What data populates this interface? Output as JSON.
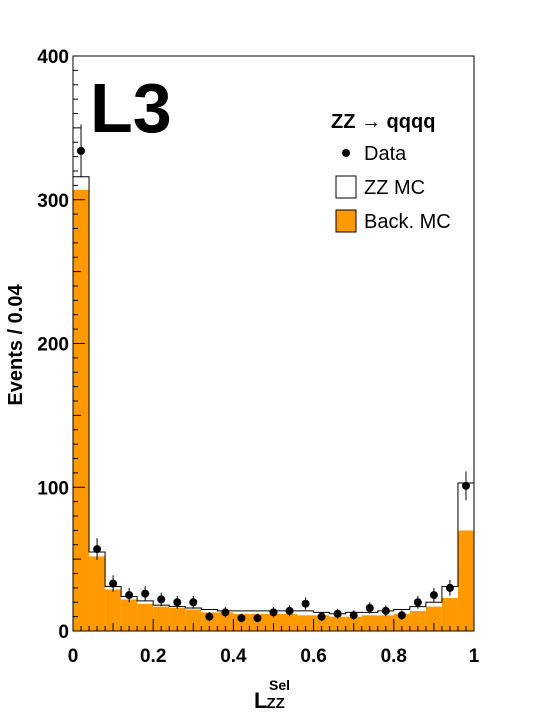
{
  "chart_data": {
    "type": "bar",
    "experiment_label": "L3",
    "process": "ZZ → qqqq",
    "ylabel": "Events / 0.04",
    "xlabel": {
      "main": "L",
      "superscript": "Sel",
      "subscript": "ZZ"
    },
    "xlim": [
      0,
      1
    ],
    "ylim": [
      0,
      400
    ],
    "x_ticks": [
      "0",
      "0.2",
      "0.4",
      "0.6",
      "0.8",
      "1"
    ],
    "y_ticks": [
      "0",
      "100",
      "200",
      "300",
      "400"
    ],
    "bin_edges": [
      0,
      0.04,
      0.08,
      0.12,
      0.16,
      0.2,
      0.24,
      0.28,
      0.32,
      0.36,
      0.4,
      0.44,
      0.48,
      0.52,
      0.56,
      0.6,
      0.64,
      0.68,
      0.72,
      0.76,
      0.8,
      0.84,
      0.88,
      0.92,
      0.96,
      1.0
    ],
    "series": [
      {
        "name": "Back. MC",
        "color": "#ff9900",
        "values": [
          307,
          52,
          29,
          22,
          19,
          17,
          16,
          15,
          13,
          13,
          12,
          12,
          12,
          12,
          11,
          11,
          10,
          10,
          11,
          11,
          12,
          14,
          17,
          23,
          70
        ]
      },
      {
        "name": "ZZ MC",
        "color": "#ffffff",
        "values": [
          316,
          55,
          31,
          24,
          21,
          18,
          17,
          16,
          15,
          14,
          14,
          14,
          14,
          14,
          14,
          13,
          12,
          13,
          13,
          14,
          15,
          17,
          20,
          31,
          103
        ]
      },
      {
        "name": "Data",
        "color": "#000000",
        "x": [
          0.02,
          0.06,
          0.1,
          0.14,
          0.18,
          0.22,
          0.26,
          0.3,
          0.34,
          0.38,
          0.42,
          0.46,
          0.5,
          0.54,
          0.58,
          0.62,
          0.66,
          0.7,
          0.74,
          0.78,
          0.82,
          0.86,
          0.9,
          0.94,
          0.98
        ],
        "values": [
          334,
          57,
          33,
          25,
          26,
          22,
          20,
          20,
          10,
          13,
          9,
          9,
          13,
          14,
          19,
          10,
          12,
          11,
          16,
          14,
          11,
          20,
          25,
          30,
          101
        ]
      }
    ],
    "legend_placement": "top-right",
    "grid": false
  }
}
